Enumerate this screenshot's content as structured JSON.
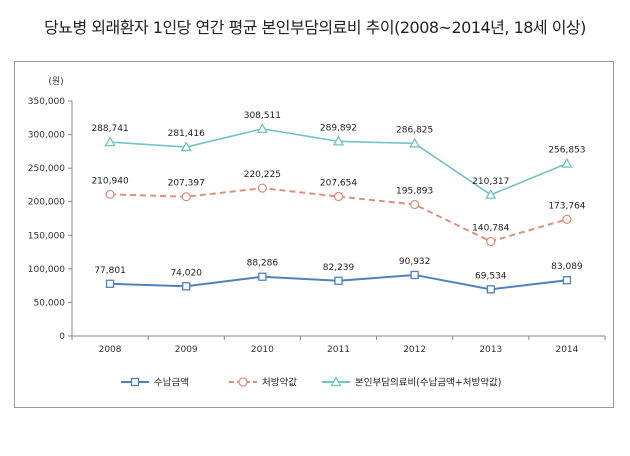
{
  "chart_data": {
    "type": "line",
    "title": "당뇨병 외래환자 1인당 연간 평균 본인부담의료비 추이(2008~2014년, 18세 이상)",
    "unit_label": "(원)",
    "xlabel": "",
    "ylabel": "",
    "categories": [
      "2008",
      "2009",
      "2010",
      "2011",
      "2012",
      "2013",
      "2014"
    ],
    "ylim": [
      0,
      350000
    ],
    "yticks": [
      0,
      50000,
      100000,
      150000,
      200000,
      250000,
      300000,
      350000
    ],
    "ytick_labels": [
      "0",
      "50,000",
      "100,000",
      "150,000",
      "200,000",
      "250,000",
      "300,000",
      "350,000"
    ],
    "grid": false,
    "legend_position": "bottom",
    "series": [
      {
        "name": "수납금액",
        "color": "#4f81bd",
        "marker": "square",
        "dashed": false,
        "values": [
          77801,
          74020,
          88286,
          82239,
          90932,
          69534,
          83089
        ],
        "labels": [
          "77,801",
          "74,020",
          "88,286",
          "82,239",
          "90,932",
          "69,534",
          "83,089"
        ]
      },
      {
        "name": "처방약값",
        "color": "#e0907e",
        "marker": "circle",
        "dashed": true,
        "values": [
          210940,
          207397,
          220225,
          207654,
          195893,
          140784,
          173764
        ],
        "labels": [
          "210,940",
          "207,397",
          "220,225",
          "207,654",
          "195,893",
          "140,784",
          "173,764"
        ]
      },
      {
        "name": "본인부담의료비(수납금액+처방약값)",
        "color": "#72c3c7",
        "marker": "triangle",
        "dashed": false,
        "values": [
          288741,
          281416,
          308511,
          289892,
          286825,
          210317,
          256853
        ],
        "labels": [
          "288,741",
          "281,416",
          "308,511",
          "289,892",
          "286,825",
          "210,317",
          "256,853"
        ]
      }
    ]
  }
}
